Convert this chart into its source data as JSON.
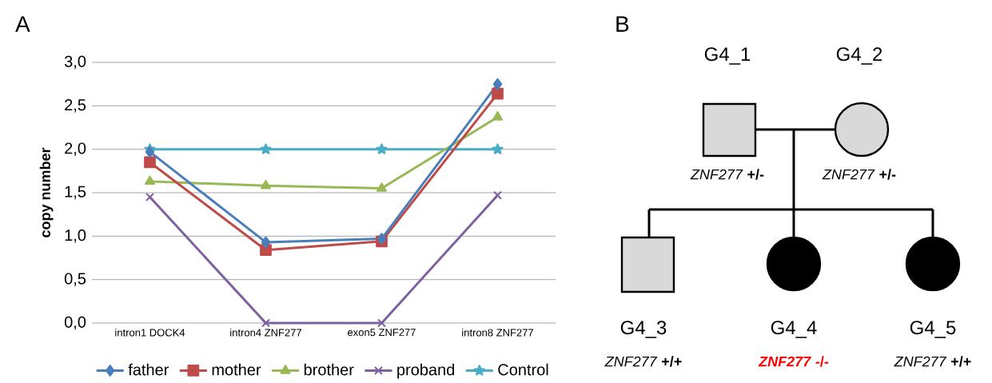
{
  "chart_data": [
    {
      "type": "line",
      "title": "A",
      "ylabel": "copy number",
      "categories": [
        "intron1 DOCK4",
        "intron4 ZNF277",
        "exon5 ZNF277",
        "intron8 ZNF277"
      ],
      "series": [
        {
          "name": "father",
          "color": "#4a7ebb",
          "marker": "diamond",
          "values": [
            1.97,
            0.93,
            0.97,
            2.75
          ]
        },
        {
          "name": "mother",
          "color": "#be4b48",
          "marker": "square",
          "values": [
            1.85,
            0.84,
            0.94,
            2.64
          ]
        },
        {
          "name": "brother",
          "color": "#98b954",
          "marker": "triangle",
          "values": [
            1.63,
            1.58,
            1.55,
            2.37
          ]
        },
        {
          "name": "proband",
          "color": "#7d60a0",
          "marker": "cross",
          "values": [
            1.45,
            0,
            0,
            1.47
          ]
        },
        {
          "name": "Control",
          "color": "#4bacc6",
          "marker": "star",
          "values": [
            2,
            2,
            2,
            2
          ]
        }
      ],
      "ylim": [
        0,
        3
      ],
      "yticks": [
        {
          "value": 0,
          "label": "0,0"
        },
        {
          "value": 0.5,
          "label": "0,5"
        },
        {
          "value": 1,
          "label": "1,0"
        },
        {
          "value": 1.5,
          "label": "1,5"
        },
        {
          "value": 2,
          "label": "2,0"
        },
        {
          "value": 2.5,
          "label": "2,5"
        },
        {
          "value": 3,
          "label": "3,0"
        }
      ],
      "grid": "y",
      "legend": "bottom"
    },
    {
      "type": "other",
      "title": "B",
      "annotations": [
        "G4_1",
        "G4_2",
        "*ZNF277* **+/-**",
        "*ZNF277* **+/-**",
        "G4_3",
        "G4_4",
        "G4_5",
        "*ZNF277* **+/+**",
        "*ZNF277* **-/-**",
        "*ZNF277* **+/+**"
      ]
    }
  ]
}
